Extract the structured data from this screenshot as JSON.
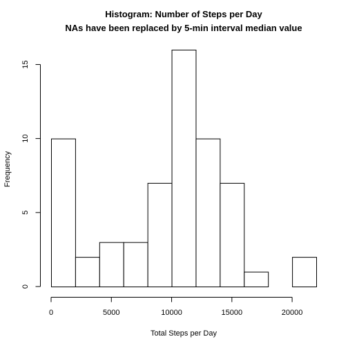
{
  "chart_data": {
    "type": "bar",
    "subtype": "histogram",
    "title": "Histogram: Number of Steps per Day",
    "subtitle": "NAs have been replaced by 5-min interval median value",
    "xlabel": "Total Steps per Day",
    "ylabel": "Frequency",
    "bin_edges": [
      0,
      2000,
      4000,
      6000,
      8000,
      10000,
      12000,
      14000,
      16000,
      18000,
      20000,
      22000
    ],
    "values": [
      10,
      2,
      3,
      3,
      7,
      16,
      10,
      7,
      1,
      0,
      2
    ],
    "xlim": [
      0,
      22000
    ],
    "ylim": [
      0,
      16
    ],
    "xticks": [
      0,
      5000,
      10000,
      15000,
      20000
    ],
    "xtick_labels": [
      "0",
      "5000",
      "10000",
      "15000",
      "20000"
    ],
    "yticks": [
      0,
      5,
      10,
      15
    ],
    "ytick_labels": [
      "0",
      "5",
      "10",
      "15"
    ],
    "grid": false,
    "bar_fill": "#ffffff",
    "bar_stroke": "#000000"
  }
}
